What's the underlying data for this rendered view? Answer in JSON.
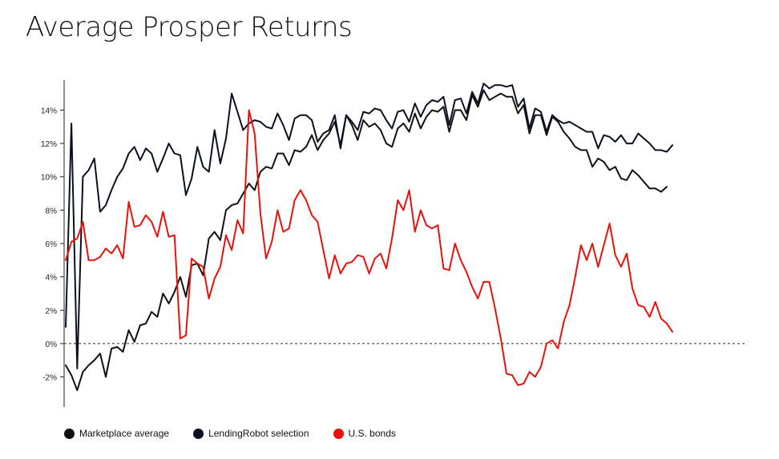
{
  "title": "Average Prosper Returns",
  "colors": {
    "marketplace": "#111111",
    "lendingrobot": "#0b1020",
    "bonds": "#e8120c",
    "axis": "#222222",
    "tick_text": "#222222"
  },
  "chart_data": {
    "type": "line",
    "title": "Average Prosper Returns",
    "xlabel": "",
    "ylabel": "",
    "x_count": 120,
    "ylim": [
      -3.8,
      15.8
    ],
    "y_ticks": [
      -2,
      0,
      2,
      4,
      6,
      8,
      10,
      12,
      14
    ],
    "y_tick_labels": [
      "-2%",
      "0%",
      "2%",
      "4%",
      "6%",
      "8%",
      "10%",
      "12%",
      "14%"
    ],
    "zero_line": "dashed",
    "grid": false,
    "legend_position": "bottom-left",
    "series": [
      {
        "name": "Marketplace average",
        "values": [
          -1.3,
          -1.9,
          -2.8,
          -1.7,
          -1.3,
          -1.0,
          -0.6,
          -2.0,
          -0.3,
          -0.2,
          -0.5,
          0.8,
          0.1,
          1.1,
          1.2,
          1.9,
          1.6,
          3.0,
          2.4,
          3.1,
          4.0,
          2.8,
          4.7,
          4.8,
          4.1,
          6.3,
          6.7,
          6.2,
          8.0,
          8.3,
          8.4,
          9.0,
          9.6,
          9.2,
          10.3,
          10.6,
          10.5,
          11.4,
          11.4,
          10.7,
          11.6,
          11.5,
          11.8,
          12.5,
          11.6,
          12.2,
          12.6,
          13.3,
          11.9,
          13.7,
          13.1,
          12.2,
          13.4,
          13.0,
          13.2,
          12.8,
          12.0,
          11.8,
          12.9,
          13.2,
          12.7,
          13.8,
          12.9,
          13.6,
          14.0,
          13.9,
          14.2,
          12.7,
          14.0,
          14.0,
          13.4,
          14.9,
          14.2,
          15.2,
          14.6,
          14.8,
          15.0,
          14.8,
          14.8,
          13.8,
          14.3,
          12.6,
          13.7,
          13.7,
          12.5,
          13.6,
          13.3,
          12.7,
          12.3,
          11.8,
          11.6,
          11.6,
          10.6,
          11.1,
          10.9,
          10.4,
          10.6,
          9.9,
          9.8,
          10.4,
          10.1,
          9.7,
          9.3,
          9.3,
          9.1,
          9.4
        ],
        "color": "#111111"
      },
      {
        "name": "LendingRobot selection",
        "values": [
          1.0,
          13.2,
          -1.5,
          10.0,
          10.4,
          11.1,
          7.9,
          8.3,
          9.2,
          10.0,
          10.5,
          11.4,
          11.8,
          11.0,
          11.7,
          11.4,
          10.3,
          11.1,
          12.0,
          11.4,
          11.3,
          8.9,
          9.9,
          11.8,
          10.6,
          10.3,
          12.8,
          10.8,
          12.3,
          15.0,
          13.9,
          12.8,
          13.2,
          13.4,
          13.3,
          13.0,
          12.9,
          13.8,
          13.1,
          12.2,
          13.5,
          13.7,
          13.7,
          13.4,
          12.1,
          12.6,
          12.8,
          13.7,
          11.7,
          13.7,
          13.3,
          12.8,
          13.9,
          13.8,
          14.1,
          14.0,
          13.4,
          12.9,
          13.9,
          14.0,
          13.3,
          14.4,
          13.6,
          14.3,
          14.6,
          14.5,
          14.8,
          13.1,
          14.6,
          14.7,
          13.8,
          15.1,
          14.4,
          15.6,
          15.3,
          15.5,
          15.5,
          15.4,
          15.5,
          14.2,
          14.7,
          12.9,
          14.1,
          13.9,
          12.7,
          13.7,
          13.4,
          13.2,
          13.3,
          13.1,
          12.9,
          12.7,
          12.7,
          11.7,
          12.5,
          12.4,
          12.1,
          12.5,
          12.0,
          12.0,
          12.6,
          12.3,
          12.0,
          11.6,
          11.6,
          11.5,
          11.9
        ],
        "color": "#0b1020"
      },
      {
        "name": "U.S. bonds",
        "values": [
          5.0,
          6.1,
          6.3,
          7.3,
          5.0,
          5.0,
          5.2,
          5.7,
          5.4,
          5.9,
          5.1,
          8.5,
          7.0,
          7.1,
          7.7,
          7.3,
          6.4,
          7.9,
          6.4,
          6.5,
          0.3,
          0.5,
          5.1,
          4.8,
          4.6,
          2.7,
          3.9,
          4.6,
          6.5,
          5.6,
          7.4,
          6.6,
          14.0,
          12.6,
          7.8,
          5.1,
          6.1,
          8.0,
          6.7,
          6.9,
          8.6,
          9.2,
          8.6,
          7.7,
          7.3,
          5.6,
          3.9,
          5.3,
          4.2,
          4.8,
          4.9,
          5.3,
          5.2,
          4.2,
          5.1,
          5.4,
          4.5,
          6.3,
          8.6,
          8.0,
          9.2,
          6.7,
          8.0,
          7.1,
          6.9,
          7.1,
          4.5,
          4.4,
          6.0,
          5.0,
          4.3,
          3.4,
          2.7,
          3.7,
          3.7,
          2.1,
          0.3,
          -1.8,
          -1.9,
          -2.5,
          -2.4,
          -1.7,
          -2.0,
          -1.4,
          0.0,
          0.2,
          -0.3,
          1.3,
          2.3,
          4.0,
          5.9,
          5.0,
          6.0,
          4.6,
          5.9,
          7.2,
          5.3,
          4.6,
          5.4,
          3.3,
          2.3,
          2.2,
          1.6,
          2.5,
          1.5,
          1.2,
          0.7
        ],
        "color": "#e8120c"
      }
    ]
  },
  "legend": {
    "items": [
      {
        "label": "Marketplace average",
        "color": "#111111"
      },
      {
        "label": "LendingRobot selection",
        "color": "#0b1020"
      },
      {
        "label": "U.S. bonds",
        "color": "#e8120c"
      }
    ]
  }
}
